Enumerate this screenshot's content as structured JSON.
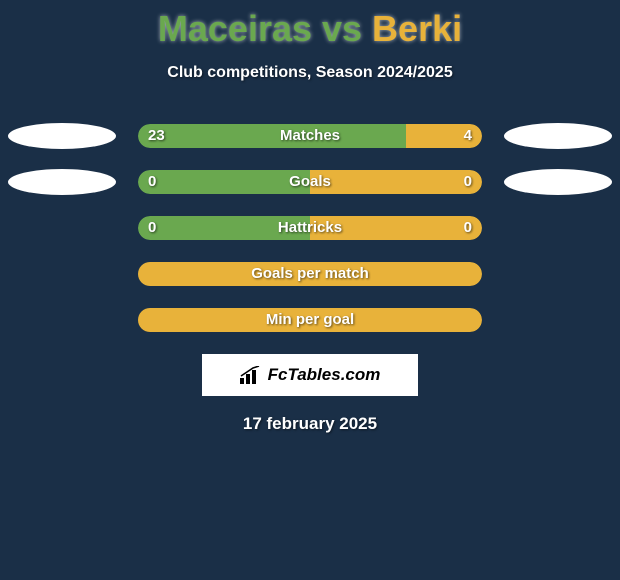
{
  "background_color": "#1a2f47",
  "title": {
    "player1": "Maceiras",
    "vs": " vs ",
    "player2": "Berki",
    "player1_color": "#6aa84f",
    "player2_color": "#e8b23a"
  },
  "subtitle": "Club competitions, Season 2024/2025",
  "left_color": "#6aa84f",
  "right_color": "#e8b23a",
  "badge_color": "#ffffff",
  "rows": [
    {
      "label": "Matches",
      "left_value": "23",
      "right_value": "4",
      "left_pct": 78,
      "right_pct": 22,
      "show_badges": true
    },
    {
      "label": "Goals",
      "left_value": "0",
      "right_value": "0",
      "left_pct": 50,
      "right_pct": 50,
      "show_badges": true
    },
    {
      "label": "Hattricks",
      "left_value": "0",
      "right_value": "0",
      "left_pct": 50,
      "right_pct": 50,
      "show_badges": false
    },
    {
      "label": "Goals per match",
      "left_value": "",
      "right_value": "",
      "left_pct": 0,
      "right_pct": 100,
      "show_badges": false
    },
    {
      "label": "Min per goal",
      "left_value": "",
      "right_value": "",
      "left_pct": 0,
      "right_pct": 100,
      "show_badges": false
    }
  ],
  "logo_text": "FcTables.com",
  "date": "17 february 2025"
}
